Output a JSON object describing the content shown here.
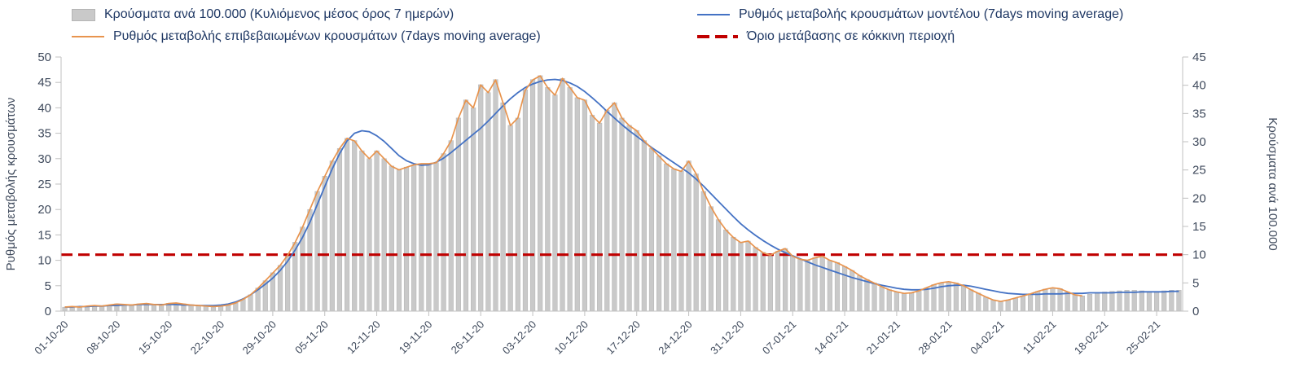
{
  "colors": {
    "bars": "#c9c9c9",
    "model_line": "#4472c4",
    "confirmed_line": "#e8944e",
    "threshold_line": "#c00000",
    "legend_text": "#1f3864",
    "axis_text": "#3f4a5c",
    "axis_line": "#c0c0c0"
  },
  "chart_data": {
    "type": "bar+line",
    "title": "",
    "grid": "off",
    "legend_position": "top",
    "x_tick_labels": [
      "01-10-20",
      "08-10-20",
      "15-10-20",
      "22-10-20",
      "29-10-20",
      "05-11-20",
      "12-11-20",
      "19-11-20",
      "26-11-20",
      "03-12-20",
      "10-12-20",
      "17-12-20",
      "24-12-20",
      "31-12-20",
      "07-01-21",
      "14-01-21",
      "21-01-21",
      "28-01-21",
      "04-02-21",
      "11-02-21",
      "18-02-21",
      "25-02-21"
    ],
    "days_per_tick": 7,
    "left_axis": {
      "label": "Ρυθμός μεταβολής κρουσμάτων",
      "min": 0,
      "max": 50,
      "step": 5
    },
    "right_axis": {
      "label": "Κρούσματα ανά 100.000",
      "min": 0,
      "max": 45,
      "step": 5
    },
    "series": [
      {
        "name": "Κρούσματα ανά 100.000 (Κυλιόμενος μέσος όρος 7 ημερών)",
        "type": "bar",
        "axis": "right",
        "color": "#c9c9c9",
        "values": [
          0.7,
          0.8,
          0.7,
          0.9,
          1.0,
          0.9,
          1.1,
          1.3,
          1.2,
          1.1,
          1.3,
          1.4,
          1.2,
          1.1,
          1.4,
          1.4,
          1.3,
          1.1,
          1.0,
          0.9,
          0.8,
          0.9,
          1.1,
          1.4,
          2.1,
          2.9,
          4.1,
          5.4,
          6.8,
          8.1,
          9.9,
          12.2,
          14.9,
          18.0,
          21.2,
          23.9,
          26.6,
          28.8,
          30.6,
          30.2,
          28.4,
          27.0,
          28.4,
          27.0,
          25.7,
          25.0,
          25.5,
          25.9,
          26.1,
          26.1,
          26.3,
          27.9,
          30.2,
          34.2,
          37.4,
          36.0,
          40.1,
          38.7,
          41.0,
          36.9,
          32.9,
          34.2,
          39.2,
          41.0,
          41.7,
          39.6,
          38.3,
          41.2,
          39.6,
          37.8,
          37.4,
          34.7,
          33.3,
          35.6,
          36.9,
          34.2,
          32.9,
          32.0,
          30.2,
          28.8,
          27.5,
          26.1,
          25.2,
          24.8,
          26.6,
          24.3,
          21.2,
          18.5,
          16.2,
          14.4,
          13.1,
          12.2,
          12.4,
          11.3,
          10.4,
          9.9,
          10.6,
          11.1,
          9.7,
          9.2,
          9.0,
          9.5,
          9.7,
          9.0,
          8.6,
          7.9,
          7.2,
          6.3,
          5.6,
          5.0,
          4.3,
          3.8,
          3.4,
          3.2,
          3.2,
          3.6,
          4.1,
          4.7,
          5.0,
          5.2,
          5.0,
          4.5,
          3.8,
          3.2,
          2.5,
          2.0,
          1.7,
          2.0,
          2.3,
          2.7,
          3.1,
          3.5,
          3.9,
          4.1,
          4.0,
          3.4,
          2.9,
          2.7,
          3.0,
          3.2,
          3.4,
          3.5,
          3.6,
          3.7,
          3.7,
          3.6,
          3.5,
          3.5,
          3.6,
          3.7,
          3.7
        ]
      },
      {
        "name": "Ρυθμός μεταβολής επιβεβαιωμένων κρουσμάτων (7days moving average)",
        "type": "line",
        "axis": "left",
        "color": "#e8944e",
        "values": [
          0.8,
          0.9,
          0.8,
          1.0,
          1.1,
          1.0,
          1.2,
          1.4,
          1.3,
          1.2,
          1.4,
          1.5,
          1.3,
          1.2,
          1.5,
          1.6,
          1.4,
          1.2,
          1.1,
          1.0,
          0.9,
          1.0,
          1.2,
          1.6,
          2.3,
          3.2,
          4.5,
          6.0,
          7.5,
          9.0,
          11.0,
          13.5,
          16.5,
          20.0,
          23.5,
          26.5,
          29.5,
          32.0,
          34.0,
          33.5,
          31.5,
          30.0,
          31.5,
          30.0,
          28.5,
          27.8,
          28.3,
          28.8,
          29.0,
          29.0,
          29.2,
          31.0,
          33.5,
          38.0,
          41.5,
          40.0,
          44.5,
          43.0,
          45.5,
          41.0,
          36.5,
          38.0,
          43.5,
          45.5,
          46.3,
          44.0,
          42.5,
          45.8,
          44.0,
          42.0,
          41.5,
          38.5,
          37.0,
          39.5,
          41.0,
          38.0,
          36.5,
          35.5,
          33.5,
          32.0,
          30.5,
          29.0,
          28.0,
          27.5,
          29.5,
          27.0,
          23.5,
          20.5,
          18.0,
          16.0,
          14.5,
          13.5,
          13.8,
          12.5,
          11.5,
          11.0,
          11.8,
          12.3,
          10.8,
          10.2,
          10.0,
          10.5,
          10.8,
          10.0,
          9.5,
          8.8,
          8.0,
          7.0,
          6.2,
          5.5,
          4.8,
          4.2,
          3.8,
          3.5,
          3.6,
          4.0,
          4.6,
          5.2,
          5.6,
          5.8,
          5.5,
          5.0,
          4.2,
          3.5,
          2.8,
          2.2,
          1.9,
          2.2,
          2.6,
          3.0,
          3.4,
          3.9,
          4.3,
          4.6,
          4.4,
          3.8,
          3.2,
          3.0,
          null,
          null,
          null,
          null,
          null,
          null,
          null,
          null,
          null,
          null,
          null,
          null,
          null
        ]
      },
      {
        "name": "Ρυθμός μεταβολής κρουσμάτων μοντέλου (7days moving average)",
        "type": "line",
        "axis": "left",
        "color": "#4472c4",
        "values": [
          0.8,
          0.8,
          0.9,
          0.9,
          1.0,
          1.0,
          1.1,
          1.1,
          1.2,
          1.2,
          1.3,
          1.3,
          1.3,
          1.3,
          1.3,
          1.3,
          1.2,
          1.2,
          1.1,
          1.1,
          1.1,
          1.2,
          1.4,
          1.8,
          2.4,
          3.2,
          4.2,
          5.3,
          6.5,
          8.0,
          9.8,
          12.0,
          14.5,
          17.5,
          21.0,
          24.5,
          28.0,
          31.0,
          33.5,
          35.0,
          35.5,
          35.3,
          34.5,
          33.4,
          32.0,
          30.6,
          29.6,
          29.0,
          28.7,
          28.8,
          29.3,
          30.1,
          31.2,
          32.4,
          33.6,
          34.8,
          36.0,
          37.4,
          38.9,
          40.4,
          41.8,
          43.0,
          44.0,
          44.7,
          45.2,
          45.5,
          45.6,
          45.4,
          44.9,
          44.2,
          43.2,
          42.0,
          40.7,
          39.3,
          38.0,
          36.7,
          35.5,
          34.4,
          33.3,
          32.2,
          31.2,
          30.2,
          29.2,
          28.2,
          27.2,
          26.0,
          24.6,
          23.1,
          21.6,
          20.1,
          18.6,
          17.2,
          16.0,
          14.9,
          13.9,
          13.0,
          12.2,
          11.5,
          10.9,
          10.3,
          9.7,
          9.1,
          8.6,
          8.1,
          7.6,
          7.1,
          6.6,
          6.2,
          5.8,
          5.4,
          5.1,
          4.8,
          4.5,
          4.3,
          4.2,
          4.2,
          4.3,
          4.5,
          4.8,
          5.0,
          5.1,
          5.1,
          4.9,
          4.6,
          4.3,
          4.0,
          3.7,
          3.5,
          3.4,
          3.3,
          3.3,
          3.3,
          3.4,
          3.4,
          3.4,
          3.5,
          3.5,
          3.5,
          3.6,
          3.6,
          3.6,
          3.6,
          3.7,
          3.7,
          3.7,
          3.8,
          3.8,
          3.8,
          3.8,
          3.9,
          3.9
        ]
      },
      {
        "name": "Όριο μετάβασης σε κόκκινη περιοχή",
        "type": "threshold",
        "axis": "right",
        "color": "#c00000",
        "value": 10
      }
    ]
  }
}
